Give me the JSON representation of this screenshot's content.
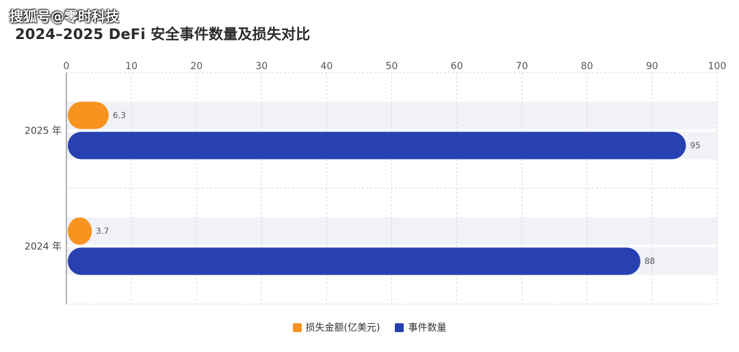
{
  "watermark": "搜狐号@零时科技",
  "colors": {
    "loss": "#F7931E",
    "events": "#2741B0",
    "band": "#F1F2F8",
    "grid": "#D5D5D5",
    "axis": "#999999"
  },
  "chart_data": {
    "type": "bar",
    "orientation": "horizontal",
    "title": "2024–2025 DeFi 安全事件数量及损失对比",
    "xlim": [
      0,
      100
    ],
    "xticks": [
      0,
      10,
      20,
      30,
      40,
      50,
      60,
      70,
      80,
      90,
      100
    ],
    "categories": [
      "2025 年",
      "2024 年"
    ],
    "series": [
      {
        "name": "损失金额(亿美元)",
        "values": [
          6.3,
          3.7
        ]
      },
      {
        "name": "事件数量",
        "values": [
          95,
          88
        ]
      }
    ],
    "grid": true,
    "legend_position": "bottom"
  }
}
